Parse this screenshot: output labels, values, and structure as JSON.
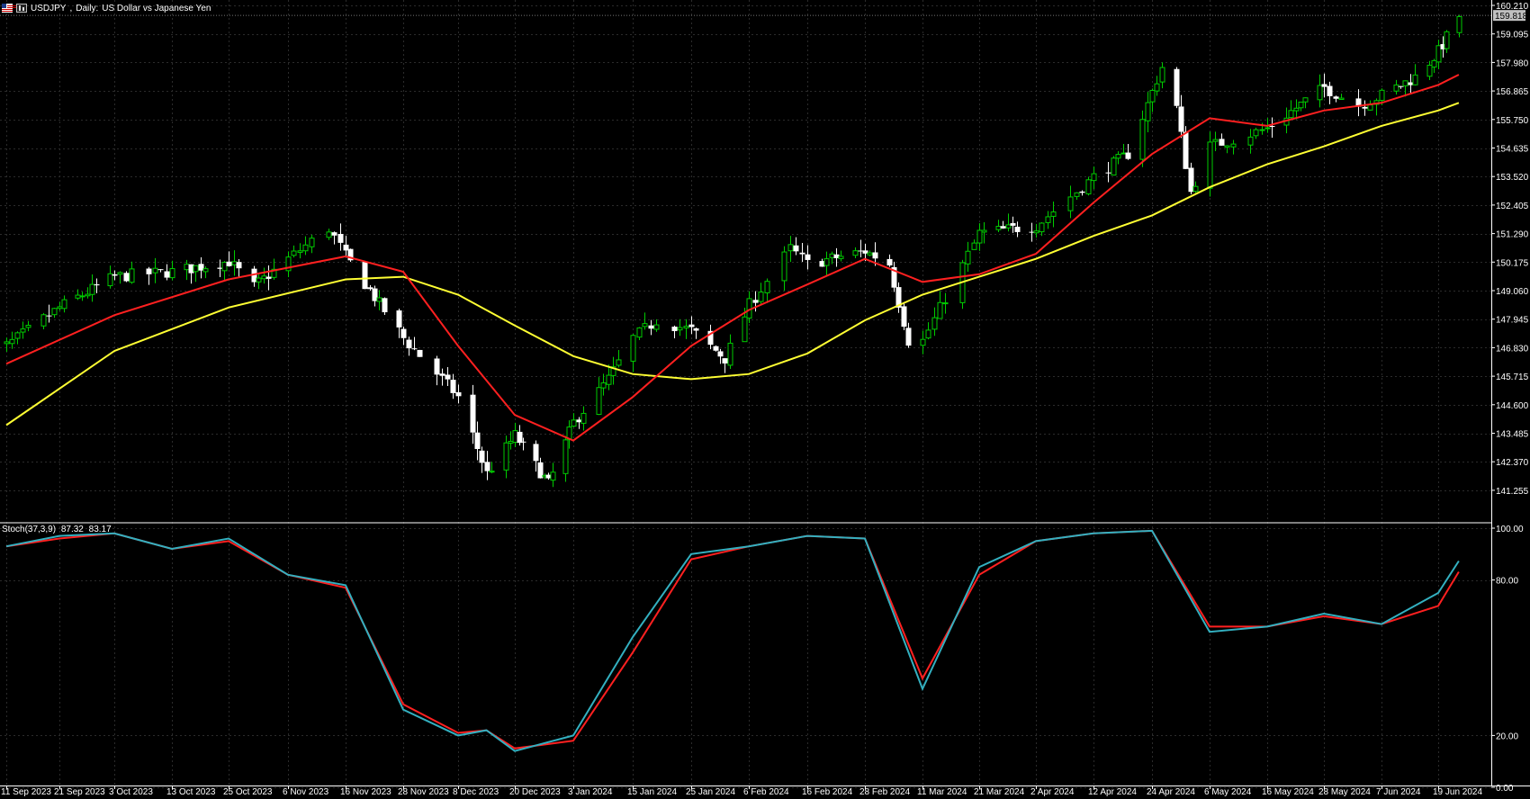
{
  "header": {
    "symbol": "USDJPY",
    "timeframe": "Daily:",
    "description": "US Dollar vs Japanese Yen"
  },
  "price_axis": {
    "labels": [
      "160.210",
      "159.095",
      "157.980",
      "156.865",
      "155.750",
      "154.635",
      "153.520",
      "152.405",
      "151.290",
      "150.175",
      "149.060",
      "147.945",
      "146.830",
      "145.715",
      "144.600",
      "143.485",
      "142.370",
      "141.255"
    ],
    "current_price": "159.818"
  },
  "stoch": {
    "title": "Stoch(37,3,9)",
    "main_value": "87.32",
    "signal_value": "83.17",
    "levels": [
      "100.00",
      "80.00",
      "20.00",
      "0.00"
    ]
  },
  "time_axis": {
    "labels": [
      "11 Sep 2023",
      "21 Sep 2023",
      "3 Oct 2023",
      "13 Oct 2023",
      "25 Oct 2023",
      "6 Nov 2023",
      "16 Nov 2023",
      "28 Nov 2023",
      "8 Dec 2023",
      "20 Dec 2023",
      "3 Jan 2024",
      "15 Jan 2024",
      "25 Jan 2024",
      "6 Feb 2024",
      "16 Feb 2024",
      "28 Feb 2024",
      "11 Mar 2024",
      "21 Mar 2024",
      "2 Apr 2024",
      "12 Apr 2024",
      "24 Apr 2024",
      "6 May 2024",
      "16 May 2024",
      "28 May 2024",
      "7 Jun 2024",
      "19 Jun 2024"
    ]
  },
  "colors": {
    "background": "#000000",
    "grid": "#2b2b2b",
    "bull_candle": "#00cc00",
    "bear_candle": "#ffffff",
    "ma_fast": "#ff2020",
    "ma_slow": "#ffff33",
    "stoch_main": "#33b0c0",
    "stoch_signal": "#ff2020",
    "axis_text": "#ffffff",
    "price_tag_bg": "#c0c0c0"
  },
  "chart_data": {
    "type": "line",
    "title": "USDJPY, Daily:  US Dollar vs Japanese Yen",
    "ylim": [
      140.7,
      160.7
    ],
    "close_anchors": {
      "x": [
        "11 Sep 2023",
        "21 Sep 2023",
        "3 Oct 2023",
        "13 Oct 2023",
        "25 Oct 2023",
        "30 Oct 2023",
        "6 Nov 2023",
        "13 Nov 2023",
        "16 Nov 2023",
        "28 Nov 2023",
        "8 Dec 2023",
        "14 Dec 2023",
        "20 Dec 2023",
        "28 Dec 2023",
        "3 Jan 2024",
        "10 Jan 2024",
        "15 Jan 2024",
        "19 Jan 2024",
        "25 Jan 2024",
        "1 Feb 2024",
        "6 Feb 2024",
        "13 Feb 2024",
        "16 Feb 2024",
        "28 Feb 2024",
        "4 Mar 2024",
        "8 Mar 2024",
        "11 Mar 2024",
        "21 Mar 2024",
        "2 Apr 2024",
        "12 Apr 2024",
        "19 Apr 2024",
        "26 Apr 2024",
        "29 Apr 2024",
        "2 May 2024",
        "6 May 2024",
        "16 May 2024",
        "28 May 2024",
        "3 Jun 2024",
        "7 Jun 2024",
        "14 Jun 2024",
        "19 Jun 2024",
        "24 Jun 2024"
      ],
      "close": [
        146.9,
        148.4,
        149.6,
        149.8,
        150.2,
        149.2,
        150.3,
        151.5,
        150.4,
        147.2,
        144.9,
        141.9,
        143.4,
        141.5,
        143.9,
        145.6,
        147.2,
        147.9,
        147.5,
        146.4,
        148.5,
        150.7,
        150.1,
        150.6,
        150.1,
        147.1,
        147.1,
        151.3,
        151.6,
        153.5,
        154.4,
        157.8,
        156.2,
        152.9,
        154.7,
        155.4,
        157.0,
        156.3,
        156.7,
        157.4,
        158.4,
        159.8
      ]
    },
    "ma_fast": {
      "name": "MA fast",
      "x": [
        "11 Sep 2023",
        "3 Oct 2023",
        "25 Oct 2023",
        "16 Nov 2023",
        "28 Nov 2023",
        "8 Dec 2023",
        "20 Dec 2023",
        "3 Jan 2024",
        "15 Jan 2024",
        "25 Jan 2024",
        "6 Feb 2024",
        "16 Feb 2024",
        "28 Feb 2024",
        "11 Mar 2024",
        "21 Mar 2024",
        "2 Apr 2024",
        "12 Apr 2024",
        "24 Apr 2024",
        "6 May 2024",
        "16 May 2024",
        "28 May 2024",
        "7 Jun 2024",
        "19 Jun 2024",
        "24 Jun 2024"
      ],
      "y": [
        146.2,
        148.1,
        149.5,
        150.4,
        149.8,
        146.9,
        144.2,
        143.2,
        144.9,
        146.9,
        148.3,
        149.3,
        150.3,
        149.4,
        149.7,
        150.5,
        152.5,
        154.4,
        155.8,
        155.5,
        156.1,
        156.4,
        157.1,
        157.5
      ]
    },
    "ma_slow": {
      "name": "MA slow",
      "x": [
        "11 Sep 2023",
        "3 Oct 2023",
        "25 Oct 2023",
        "16 Nov 2023",
        "28 Nov 2023",
        "8 Dec 2023",
        "20 Dec 2023",
        "3 Jan 2024",
        "15 Jan 2024",
        "25 Jan 2024",
        "6 Feb 2024",
        "16 Feb 2024",
        "28 Feb 2024",
        "11 Mar 2024",
        "21 Mar 2024",
        "2 Apr 2024",
        "12 Apr 2024",
        "24 Apr 2024",
        "6 May 2024",
        "16 May 2024",
        "28 May 2024",
        "7 Jun 2024",
        "19 Jun 2024",
        "24 Jun 2024"
      ],
      "y": [
        143.8,
        146.7,
        148.4,
        149.5,
        149.6,
        148.9,
        147.7,
        146.5,
        145.8,
        145.6,
        145.8,
        146.6,
        147.9,
        148.9,
        149.6,
        150.3,
        151.2,
        152.0,
        153.1,
        154.0,
        154.7,
        155.5,
        156.1,
        156.4
      ]
    },
    "stochastic": {
      "name": "Stoch(37,3,9)",
      "ylim": [
        0,
        100
      ],
      "x": [
        "11 Sep 2023",
        "21 Sep 2023",
        "3 Oct 2023",
        "13 Oct 2023",
        "25 Oct 2023",
        "6 Nov 2023",
        "16 Nov 2023",
        "28 Nov 2023",
        "8 Dec 2023",
        "14 Dec 2023",
        "20 Dec 2023",
        "3 Jan 2024",
        "15 Jan 2024",
        "25 Jan 2024",
        "6 Feb 2024",
        "16 Feb 2024",
        "28 Feb 2024",
        "11 Mar 2024",
        "21 Mar 2024",
        "2 Apr 2024",
        "12 Apr 2024",
        "24 Apr 2024",
        "6 May 2024",
        "16 May 2024",
        "28 May 2024",
        "7 Jun 2024",
        "19 Jun 2024",
        "24 Jun 2024"
      ],
      "main": [
        93,
        97,
        98,
        92,
        96,
        82,
        78,
        30,
        20,
        22,
        14,
        20,
        58,
        90,
        93,
        97,
        96,
        38,
        85,
        95,
        98,
        99,
        60,
        62,
        67,
        63,
        75,
        87.32
      ],
      "signal": [
        93,
        96,
        98,
        92,
        95,
        82,
        77,
        32,
        21,
        22,
        15,
        18,
        52,
        88,
        93,
        97,
        96,
        42,
        82,
        95,
        98,
        99,
        62,
        62,
        66,
        63,
        70,
        83.17
      ]
    }
  }
}
